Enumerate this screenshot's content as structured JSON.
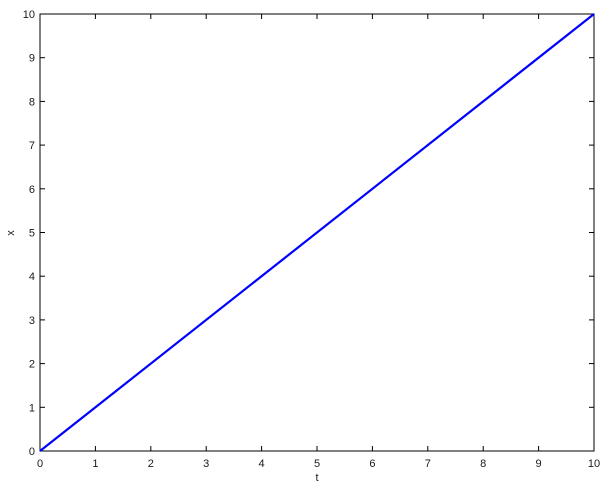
{
  "chart_data": {
    "type": "line",
    "title": "",
    "xlabel": "t",
    "ylabel": "x",
    "xlim": [
      0,
      10
    ],
    "ylim": [
      0,
      10
    ],
    "xticks": [
      0,
      1,
      2,
      3,
      4,
      5,
      6,
      7,
      8,
      9,
      10
    ],
    "yticks": [
      0,
      1,
      2,
      3,
      4,
      5,
      6,
      7,
      8,
      9,
      10
    ],
    "grid": false,
    "series": [
      {
        "x": [
          0,
          10
        ],
        "y": [
          0,
          10
        ],
        "color": "#0000ff"
      }
    ]
  }
}
